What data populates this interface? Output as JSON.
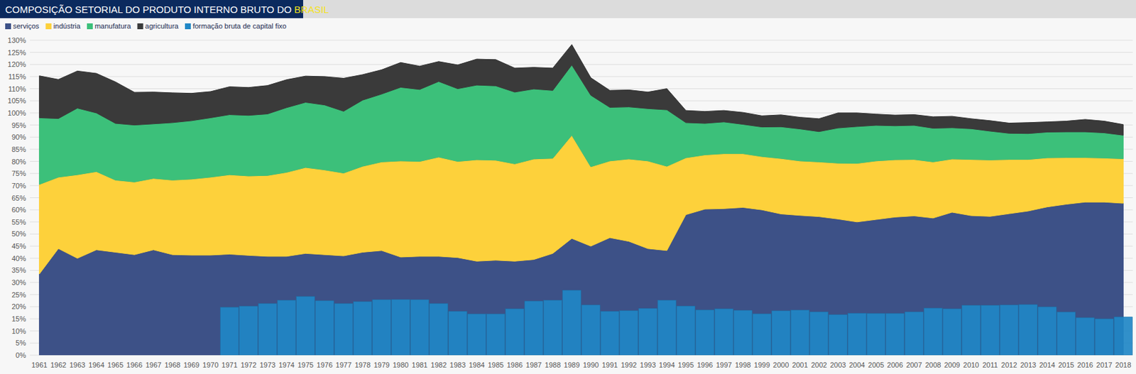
{
  "chart_data": {
    "type": "area",
    "title": "COMPOSIÇÃO SETORIAL DO PRODUTO INTERNO BRUTO DO BRASIL",
    "stacked": true,
    "grid": true,
    "legend": "top-left",
    "categories": [
      "1961",
      "1962",
      "1963",
      "1964",
      "1965",
      "1966",
      "1967",
      "1968",
      "1969",
      "1970",
      "1971",
      "1972",
      "1973",
      "1974",
      "1975",
      "1976",
      "1977",
      "1978",
      "1979",
      "1980",
      "1981",
      "1982",
      "1983",
      "1984",
      "1985",
      "1986",
      "1987",
      "1988",
      "1989",
      "1990",
      "1991",
      "1992",
      "1993",
      "1994",
      "1995",
      "1996",
      "1997",
      "1998",
      "1999",
      "2000",
      "2001",
      "2002",
      "2003",
      "2004",
      "2005",
      "2006",
      "2007",
      "2008",
      "2009",
      "2010",
      "2011",
      "2012",
      "2013",
      "2014",
      "2015",
      "2016",
      "2017",
      "2018"
    ],
    "ylim": [
      0,
      130
    ],
    "yticks": [
      {
        "value": 0,
        "label": "0%"
      },
      {
        "value": 5,
        "label": "5%"
      },
      {
        "value": 10,
        "label": "10%"
      },
      {
        "value": 15,
        "label": "15%"
      },
      {
        "value": 20,
        "label": "20%"
      },
      {
        "value": 25,
        "label": "25%"
      },
      {
        "value": 30,
        "label": "30%"
      },
      {
        "value": 35,
        "label": "35%"
      },
      {
        "value": 40,
        "label": "40%"
      },
      {
        "value": 45,
        "label": "45%"
      },
      {
        "value": 50,
        "label": "50%"
      },
      {
        "value": 55,
        "label": "55%"
      },
      {
        "value": 60,
        "label": "60%"
      },
      {
        "value": 65,
        "label": "65%"
      },
      {
        "value": 70,
        "label": "70%"
      },
      {
        "value": 75,
        "label": "75%"
      },
      {
        "value": 80,
        "label": "80%"
      },
      {
        "value": 85,
        "label": "85%"
      },
      {
        "value": 90,
        "label": "90%"
      },
      {
        "value": 95,
        "label": "95%"
      },
      {
        "value": 100,
        "label": "100%"
      },
      {
        "value": 105,
        "label": "105%"
      },
      {
        "value": 110,
        "label": "110%"
      },
      {
        "value": 115,
        "label": "115%"
      },
      {
        "value": 120,
        "label": "120%"
      },
      {
        "value": 125,
        "label": "125%"
      },
      {
        "value": 130,
        "label": "130%"
      }
    ],
    "series": [
      {
        "name": "serviços",
        "color": "#3d5187",
        "type": "area",
        "values": [
          33.5,
          44,
          40,
          43.5,
          42.5,
          41.5,
          43.5,
          41.5,
          41.3,
          41.3,
          41.7,
          41.2,
          40.8,
          40.8,
          42,
          41.5,
          41,
          42.5,
          43.2,
          40.5,
          40.8,
          40.8,
          40.3,
          38.8,
          39.2,
          38.8,
          39.5,
          42,
          48.2,
          45,
          48.5,
          47,
          44,
          43.2,
          58,
          60.3,
          60.5,
          61,
          60,
          58.3,
          57.7,
          57.2,
          56.2,
          55,
          56,
          57,
          57.5,
          56.6,
          59,
          57.6,
          57.3,
          58.4,
          59.5,
          61.2,
          62.3,
          63.2,
          63.2,
          62.7
        ]
      },
      {
        "name": "indústria",
        "color": "#fdd13b",
        "type": "area",
        "values": [
          37,
          29.5,
          34.5,
          32.3,
          29.8,
          30,
          29.5,
          30.8,
          31.4,
          32.2,
          32.8,
          32.8,
          33.4,
          34.7,
          35.5,
          35,
          34.2,
          35.5,
          36.6,
          39.7,
          39.2,
          41,
          39.7,
          41.9,
          41.3,
          40.2,
          41.5,
          39.3,
          42.6,
          32.8,
          31.7,
          34,
          36.2,
          34.8,
          23.5,
          22.4,
          22.7,
          22.2,
          22,
          22.9,
          22.5,
          22.6,
          23.1,
          24.2,
          24.2,
          23.7,
          23.3,
          23.2,
          22,
          23.2,
          23.3,
          22.4,
          21.3,
          20.3,
          19.3,
          18.4,
          18.2,
          18.4
        ]
      },
      {
        "name": "manufatura",
        "color": "#3cc07a",
        "type": "area",
        "values": [
          27.5,
          24.2,
          27.5,
          24.2,
          23.4,
          23.5,
          22.5,
          23.7,
          24.1,
          24.5,
          24.8,
          25,
          25.4,
          26.7,
          26.9,
          26.8,
          25.5,
          27.3,
          28,
          30.4,
          29.7,
          31.2,
          30,
          30.8,
          30.7,
          29.6,
          28.9,
          28,
          29,
          29.5,
          22.1,
          21.5,
          21.6,
          23.3,
          14.5,
          13,
          13.1,
          12.1,
          12.2,
          13.1,
          13.2,
          12.5,
          14.5,
          15.2,
          14.7,
          14,
          14.1,
          13.9,
          12.9,
          12.7,
          11.9,
          10.8,
          10.7,
          10.6,
          10.6,
          10.6,
          10.4,
          9.7
        ]
      },
      {
        "name": "agricultura",
        "color": "#3a3a3a",
        "type": "area",
        "values": [
          17.3,
          16.1,
          15.3,
          16.3,
          17.1,
          13.5,
          13.1,
          12.3,
          11.3,
          10.8,
          11.5,
          11.5,
          11.7,
          11.5,
          10.8,
          11.7,
          13.6,
          10.5,
          10,
          10.2,
          9.6,
          8.2,
          9.8,
          10.7,
          10.8,
          9.9,
          8.9,
          9.2,
          8.4,
          7.2,
          7,
          7,
          6.8,
          8.7,
          5,
          4.9,
          4.7,
          4.9,
          4.6,
          4.9,
          4.8,
          5.3,
          6.2,
          5.6,
          4.6,
          4.4,
          4.4,
          4.7,
          4.7,
          4.1,
          4.3,
          4.2,
          4.5,
          4.2,
          4.4,
          5.1,
          4.8,
          4.4
        ]
      },
      {
        "name": "formação bruta de capital fixo",
        "color": "#1f87c6",
        "type": "bar",
        "values": [
          null,
          null,
          null,
          null,
          null,
          null,
          null,
          null,
          null,
          null,
          19.8,
          20.2,
          21.3,
          22.7,
          24.2,
          22.5,
          21.3,
          22.1,
          22.9,
          23,
          22.9,
          21.3,
          18.1,
          17,
          17,
          19.1,
          22.3,
          22.7,
          26.8,
          20.7,
          18.1,
          18.4,
          19.3,
          22.7,
          20.3,
          18.7,
          19.1,
          18.5,
          17.1,
          18.3,
          18.6,
          17.9,
          16.7,
          17.3,
          17.2,
          17.2,
          17.9,
          19.4,
          19.1,
          20.6,
          20.6,
          20.7,
          20.9,
          19.9,
          17.8,
          15.5,
          15,
          15.8
        ]
      }
    ]
  }
}
